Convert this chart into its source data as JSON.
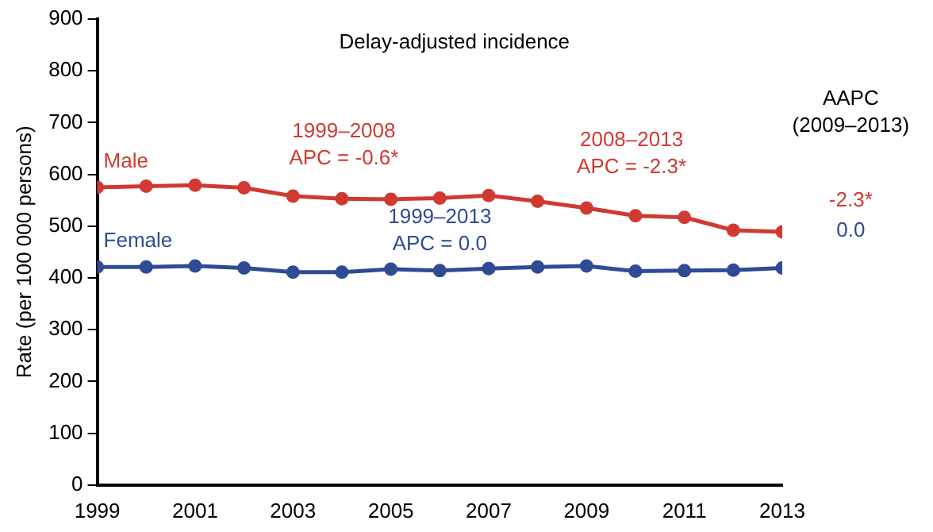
{
  "chart_data": {
    "type": "line",
    "title": "Delay-adjusted incidence",
    "ylabel": "Rate (per 100 000 persons)",
    "x": [
      1999,
      2000,
      2001,
      2002,
      2003,
      2004,
      2005,
      2006,
      2007,
      2008,
      2009,
      2010,
      2011,
      2012,
      2013
    ],
    "series": [
      {
        "name": "Male",
        "color": "#d03a32",
        "values": [
          575,
          577,
          579,
          574,
          558,
          553,
          552,
          554,
          559,
          548,
          535,
          520,
          517,
          492,
          489
        ]
      },
      {
        "name": "Female",
        "color": "#2f4b94",
        "values": [
          421,
          421,
          423,
          419,
          411,
          411,
          417,
          414,
          418,
          421,
          423,
          413,
          414,
          415,
          419
        ]
      }
    ],
    "xlim": [
      1999,
      2013
    ],
    "xticks": [
      1999,
      2001,
      2003,
      2005,
      2007,
      2009,
      2011,
      2013
    ],
    "ylim": [
      0,
      900
    ],
    "yticks": [
      0,
      100,
      200,
      300,
      400,
      500,
      600,
      700,
      800,
      900
    ],
    "grid": false,
    "legend": false,
    "marker": "circle",
    "line_style": "solid",
    "annotations": [
      "1999–2008\nAPC = -0.6*",
      "2008–2013\nAPC = -2.3*",
      "1999–2013\nAPC = 0.0",
      "AAPC\n(2009–2013)",
      "-2.3*",
      "0.0"
    ]
  }
}
